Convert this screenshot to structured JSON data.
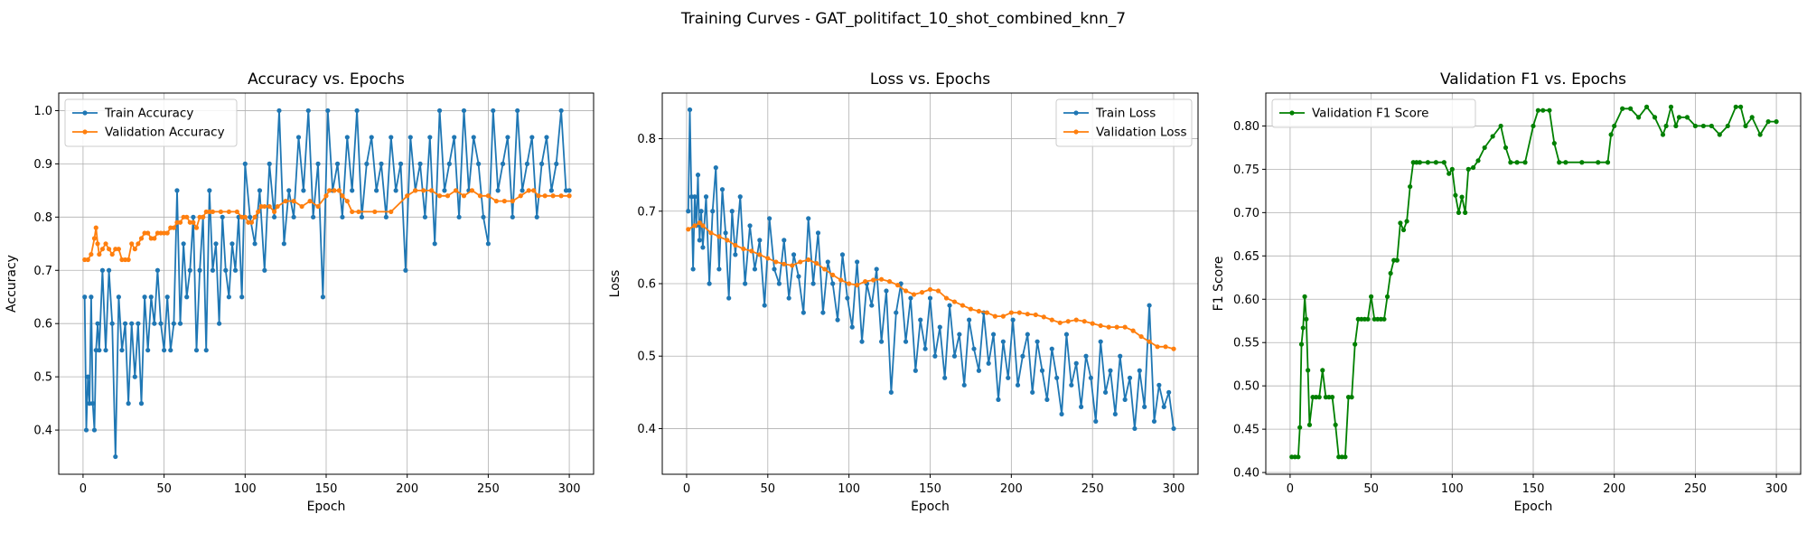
{
  "figure": {
    "suptitle": "Training Curves - GAT_politifact_10_shot_combined_knn_7"
  },
  "chart_data": [
    {
      "type": "line",
      "title": "Accuracy vs. Epochs",
      "xlabel": "Epoch",
      "ylabel": "Accuracy",
      "xlim": [
        -15,
        315
      ],
      "ylim": [
        0.317,
        1.033
      ],
      "xticks": [
        0,
        50,
        100,
        150,
        200,
        250,
        300
      ],
      "yticks": [
        0.4,
        0.5,
        0.6,
        0.7,
        0.8,
        0.9,
        1.0
      ],
      "grid": true,
      "legend_position": "upper-left",
      "series": [
        {
          "name": "Train Accuracy",
          "color": "#1f77b4",
          "x": [
            1,
            2,
            3,
            4,
            5,
            6,
            7,
            8,
            9,
            10,
            12,
            14,
            16,
            18,
            20,
            22,
            24,
            26,
            28,
            30,
            32,
            34,
            36,
            38,
            40,
            42,
            44,
            46,
            48,
            50,
            52,
            54,
            56,
            58,
            60,
            62,
            64,
            66,
            68,
            70,
            72,
            74,
            76,
            78,
            80,
            82,
            84,
            86,
            88,
            90,
            92,
            94,
            96,
            98,
            100,
            103,
            106,
            109,
            112,
            115,
            118,
            121,
            124,
            127,
            130,
            133,
            136,
            139,
            142,
            145,
            148,
            151,
            154,
            157,
            160,
            163,
            166,
            169,
            172,
            175,
            178,
            181,
            184,
            187,
            190,
            193,
            196,
            199,
            202,
            205,
            208,
            211,
            214,
            217,
            220,
            223,
            226,
            229,
            232,
            235,
            238,
            241,
            244,
            247,
            250,
            253,
            256,
            259,
            262,
            265,
            268,
            271,
            274,
            277,
            280,
            283,
            286,
            289,
            292,
            295,
            298,
            300
          ],
          "values": [
            0.65,
            0.4,
            0.5,
            0.45,
            0.65,
            0.45,
            0.4,
            0.55,
            0.6,
            0.55,
            0.7,
            0.55,
            0.7,
            0.6,
            0.35,
            0.65,
            0.55,
            0.6,
            0.45,
            0.6,
            0.5,
            0.6,
            0.45,
            0.65,
            0.55,
            0.65,
            0.6,
            0.7,
            0.6,
            0.55,
            0.65,
            0.55,
            0.6,
            0.85,
            0.6,
            0.75,
            0.65,
            0.7,
            0.8,
            0.55,
            0.7,
            0.8,
            0.55,
            0.85,
            0.7,
            0.75,
            0.6,
            0.8,
            0.7,
            0.65,
            0.75,
            0.7,
            0.8,
            0.65,
            0.9,
            0.8,
            0.75,
            0.85,
            0.7,
            0.9,
            0.8,
            1.0,
            0.75,
            0.85,
            0.8,
            0.95,
            0.85,
            1.0,
            0.8,
            0.9,
            0.65,
            1.0,
            0.85,
            0.9,
            0.8,
            0.95,
            0.85,
            1.0,
            0.8,
            0.9,
            0.95,
            0.85,
            0.9,
            0.8,
            0.95,
            0.85,
            0.9,
            0.7,
            0.95,
            0.85,
            0.9,
            0.8,
            0.95,
            0.75,
            1.0,
            0.85,
            0.9,
            0.95,
            0.8,
            1.0,
            0.85,
            0.95,
            0.9,
            0.8,
            0.75,
            1.0,
            0.85,
            0.9,
            0.95,
            0.8,
            1.0,
            0.85,
            0.9,
            0.95,
            0.8,
            0.9,
            0.95,
            0.85,
            0.9,
            1.0,
            0.85,
            0.85
          ]
        },
        {
          "name": "Validation Accuracy",
          "color": "#ff7f0e",
          "x": [
            1,
            3,
            5,
            7,
            8,
            9,
            10,
            12,
            14,
            16,
            18,
            20,
            22,
            24,
            26,
            28,
            30,
            32,
            34,
            36,
            38,
            40,
            42,
            44,
            46,
            48,
            50,
            52,
            54,
            56,
            58,
            60,
            62,
            64,
            66,
            68,
            70,
            72,
            74,
            76,
            78,
            80,
            85,
            90,
            95,
            98,
            100,
            102,
            104,
            106,
            108,
            110,
            112,
            115,
            118,
            120,
            125,
            130,
            135,
            140,
            145,
            150,
            152,
            155,
            158,
            160,
            163,
            166,
            170,
            180,
            190,
            200,
            205,
            210,
            215,
            220,
            225,
            230,
            235,
            240,
            245,
            250,
            255,
            260,
            265,
            270,
            275,
            278,
            281,
            285,
            290,
            295,
            300
          ],
          "values": [
            0.72,
            0.72,
            0.73,
            0.76,
            0.78,
            0.75,
            0.73,
            0.74,
            0.75,
            0.74,
            0.73,
            0.74,
            0.74,
            0.72,
            0.72,
            0.72,
            0.75,
            0.74,
            0.75,
            0.76,
            0.77,
            0.77,
            0.76,
            0.76,
            0.77,
            0.77,
            0.77,
            0.77,
            0.78,
            0.78,
            0.79,
            0.79,
            0.8,
            0.8,
            0.79,
            0.79,
            0.78,
            0.8,
            0.8,
            0.81,
            0.81,
            0.81,
            0.81,
            0.81,
            0.81,
            0.8,
            0.8,
            0.79,
            0.79,
            0.8,
            0.81,
            0.82,
            0.82,
            0.82,
            0.81,
            0.82,
            0.83,
            0.83,
            0.82,
            0.83,
            0.82,
            0.84,
            0.85,
            0.85,
            0.85,
            0.84,
            0.83,
            0.81,
            0.81,
            0.81,
            0.81,
            0.84,
            0.85,
            0.85,
            0.85,
            0.84,
            0.84,
            0.85,
            0.84,
            0.85,
            0.84,
            0.84,
            0.83,
            0.83,
            0.83,
            0.84,
            0.85,
            0.85,
            0.84,
            0.84,
            0.84,
            0.84,
            0.84
          ]
        }
      ]
    },
    {
      "type": "line",
      "title": "Loss vs. Epochs",
      "xlabel": "Epoch",
      "ylabel": "Loss",
      "xlim": [
        -15,
        315
      ],
      "ylim": [
        0.337,
        0.863
      ],
      "xticks": [
        0,
        50,
        100,
        150,
        200,
        250,
        300
      ],
      "yticks": [
        0.4,
        0.5,
        0.6,
        0.7,
        0.8
      ],
      "grid": true,
      "legend_position": "upper-right",
      "series": [
        {
          "name": "Train Loss",
          "color": "#1f77b4",
          "x": [
            1,
            2,
            3,
            4,
            5,
            6,
            7,
            8,
            9,
            10,
            12,
            14,
            16,
            18,
            20,
            22,
            24,
            26,
            28,
            30,
            33,
            36,
            39,
            42,
            45,
            48,
            51,
            54,
            57,
            60,
            63,
            66,
            69,
            72,
            75,
            78,
            81,
            84,
            87,
            90,
            93,
            96,
            99,
            102,
            105,
            108,
            111,
            114,
            117,
            120,
            123,
            126,
            129,
            132,
            135,
            138,
            141,
            144,
            147,
            150,
            153,
            156,
            159,
            162,
            165,
            168,
            171,
            174,
            177,
            180,
            183,
            186,
            189,
            192,
            195,
            198,
            201,
            204,
            207,
            210,
            213,
            216,
            219,
            222,
            225,
            228,
            231,
            234,
            237,
            240,
            243,
            246,
            249,
            252,
            255,
            258,
            261,
            264,
            267,
            270,
            273,
            276,
            279,
            282,
            285,
            288,
            291,
            294,
            297,
            300
          ],
          "values": [
            0.7,
            0.84,
            0.72,
            0.62,
            0.72,
            0.68,
            0.75,
            0.66,
            0.7,
            0.65,
            0.72,
            0.6,
            0.7,
            0.76,
            0.62,
            0.73,
            0.67,
            0.58,
            0.7,
            0.64,
            0.72,
            0.6,
            0.68,
            0.62,
            0.66,
            0.57,
            0.69,
            0.62,
            0.6,
            0.66,
            0.58,
            0.64,
            0.61,
            0.56,
            0.69,
            0.6,
            0.67,
            0.56,
            0.63,
            0.6,
            0.55,
            0.64,
            0.58,
            0.54,
            0.63,
            0.52,
            0.6,
            0.57,
            0.62,
            0.52,
            0.59,
            0.45,
            0.56,
            0.6,
            0.52,
            0.58,
            0.48,
            0.55,
            0.51,
            0.58,
            0.5,
            0.54,
            0.47,
            0.57,
            0.5,
            0.53,
            0.46,
            0.55,
            0.51,
            0.48,
            0.56,
            0.49,
            0.53,
            0.44,
            0.52,
            0.47,
            0.55,
            0.46,
            0.5,
            0.53,
            0.45,
            0.52,
            0.48,
            0.44,
            0.51,
            0.47,
            0.42,
            0.53,
            0.46,
            0.49,
            0.43,
            0.5,
            0.47,
            0.41,
            0.52,
            0.45,
            0.48,
            0.42,
            0.5,
            0.44,
            0.47,
            0.4,
            0.48,
            0.43,
            0.57,
            0.41,
            0.46,
            0.43,
            0.45,
            0.4
          ]
        },
        {
          "name": "Validation Loss",
          "color": "#ff7f0e",
          "x": [
            1,
            5,
            8,
            10,
            15,
            20,
            25,
            30,
            35,
            40,
            45,
            50,
            55,
            60,
            65,
            70,
            75,
            80,
            85,
            90,
            95,
            100,
            105,
            110,
            115,
            120,
            125,
            130,
            135,
            140,
            145,
            150,
            155,
            160,
            165,
            170,
            175,
            180,
            185,
            190,
            195,
            200,
            205,
            210,
            215,
            220,
            225,
            230,
            235,
            240,
            245,
            250,
            255,
            260,
            265,
            270,
            275,
            280,
            285,
            290,
            295,
            300
          ],
          "values": [
            0.675,
            0.68,
            0.684,
            0.68,
            0.67,
            0.665,
            0.66,
            0.653,
            0.648,
            0.645,
            0.64,
            0.635,
            0.63,
            0.627,
            0.625,
            0.63,
            0.633,
            0.628,
            0.62,
            0.612,
            0.605,
            0.6,
            0.598,
            0.603,
            0.605,
            0.606,
            0.603,
            0.598,
            0.59,
            0.585,
            0.588,
            0.592,
            0.59,
            0.58,
            0.575,
            0.57,
            0.565,
            0.562,
            0.56,
            0.555,
            0.555,
            0.56,
            0.56,
            0.558,
            0.557,
            0.554,
            0.55,
            0.546,
            0.548,
            0.55,
            0.548,
            0.545,
            0.542,
            0.54,
            0.54,
            0.54,
            0.535,
            0.527,
            0.52,
            0.513,
            0.513,
            0.51
          ]
        }
      ]
    },
    {
      "type": "line",
      "title": "Validation F1 vs. Epochs",
      "xlabel": "Epoch",
      "ylabel": "F1 Score",
      "xlim": [
        -15,
        315
      ],
      "ylim": [
        0.398,
        0.838
      ],
      "xticks": [
        0,
        50,
        100,
        150,
        200,
        250,
        300
      ],
      "yticks": [
        0.4,
        0.45,
        0.5,
        0.55,
        0.6,
        0.65,
        0.7,
        0.75,
        0.8
      ],
      "grid": true,
      "legend_position": "upper-left",
      "series": [
        {
          "name": "Validation F1 Score",
          "color": "#008000",
          "x": [
            1,
            3,
            5,
            6,
            7,
            8,
            9,
            10,
            11,
            12,
            14,
            16,
            18,
            20,
            22,
            24,
            26,
            28,
            30,
            32,
            34,
            36,
            38,
            40,
            42,
            44,
            46,
            48,
            50,
            52,
            54,
            56,
            58,
            60,
            62,
            64,
            66,
            68,
            70,
            72,
            74,
            76,
            78,
            80,
            85,
            90,
            95,
            98,
            100,
            102,
            104,
            106,
            108,
            110,
            113,
            116,
            120,
            125,
            130,
            133,
            136,
            140,
            145,
            150,
            153,
            156,
            160,
            163,
            166,
            170,
            180,
            190,
            196,
            198,
            200,
            205,
            210,
            215,
            220,
            225,
            230,
            232,
            235,
            238,
            240,
            245,
            250,
            255,
            260,
            265,
            270,
            275,
            278,
            281,
            285,
            290,
            295,
            300
          ],
          "values": [
            0.418,
            0.418,
            0.418,
            0.452,
            0.548,
            0.567,
            0.603,
            0.577,
            0.518,
            0.455,
            0.487,
            0.487,
            0.487,
            0.518,
            0.487,
            0.487,
            0.487,
            0.455,
            0.418,
            0.418,
            0.418,
            0.487,
            0.487,
            0.548,
            0.577,
            0.577,
            0.577,
            0.577,
            0.603,
            0.577,
            0.577,
            0.577,
            0.577,
            0.603,
            0.63,
            0.645,
            0.645,
            0.688,
            0.68,
            0.69,
            0.73,
            0.758,
            0.758,
            0.758,
            0.758,
            0.758,
            0.758,
            0.745,
            0.75,
            0.72,
            0.7,
            0.718,
            0.7,
            0.75,
            0.752,
            0.76,
            0.775,
            0.788,
            0.8,
            0.775,
            0.758,
            0.758,
            0.758,
            0.8,
            0.818,
            0.818,
            0.818,
            0.78,
            0.758,
            0.758,
            0.758,
            0.758,
            0.758,
            0.79,
            0.8,
            0.82,
            0.82,
            0.81,
            0.822,
            0.81,
            0.79,
            0.8,
            0.822,
            0.8,
            0.81,
            0.81,
            0.8,
            0.8,
            0.8,
            0.79,
            0.8,
            0.822,
            0.822,
            0.8,
            0.81,
            0.79,
            0.805,
            0.805
          ]
        }
      ]
    }
  ]
}
